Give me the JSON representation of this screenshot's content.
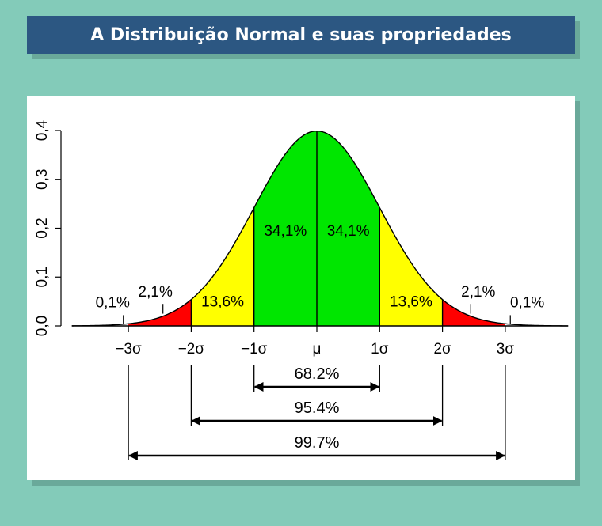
{
  "header": {
    "title": "A Distribuição Normal e suas propriedades"
  },
  "chart_data": {
    "type": "area",
    "title": "",
    "xlabel": "",
    "ylabel": "",
    "xlim": [
      -3.9,
      4.0
    ],
    "ylim": [
      0,
      0.4
    ],
    "y_ticks": [
      "0,0",
      "0,1",
      "0,2",
      "0,3",
      "0,4"
    ],
    "y_tick_values": [
      0,
      0.1,
      0.2,
      0.3,
      0.4
    ],
    "x_ticks": [
      {
        "x": -3,
        "label": "−3σ"
      },
      {
        "x": -2,
        "label": "−2σ"
      },
      {
        "x": -1,
        "label": "−1σ"
      },
      {
        "x": 0,
        "label": "μ"
      },
      {
        "x": 1,
        "label": "1σ"
      },
      {
        "x": 2,
        "label": "2σ"
      },
      {
        "x": 3,
        "label": "3σ"
      }
    ],
    "regions": [
      {
        "from": -3,
        "to": -2,
        "percent": "2,1%",
        "color": "#ff0000"
      },
      {
        "from": -2,
        "to": -1,
        "percent": "13,6%",
        "color": "#ffff00"
      },
      {
        "from": -1,
        "to": 0,
        "percent": "34,1%",
        "color": "#00e600"
      },
      {
        "from": 0,
        "to": 1,
        "percent": "34,1%",
        "color": "#00e600"
      },
      {
        "from": 1,
        "to": 2,
        "percent": "13,6%",
        "color": "#ffff00"
      },
      {
        "from": 2,
        "to": 3,
        "percent": "2,1%",
        "color": "#ff0000"
      }
    ],
    "tail_labels": [
      {
        "at": -3.3,
        "percent": "0,1%"
      },
      {
        "at": 3.3,
        "percent": "0,1%"
      }
    ],
    "intervals": [
      {
        "from": -1,
        "to": 1,
        "label": "68.2%"
      },
      {
        "from": -2,
        "to": 2,
        "label": "95.4%"
      },
      {
        "from": -3,
        "to": 3,
        "label": "99.7%"
      }
    ]
  }
}
